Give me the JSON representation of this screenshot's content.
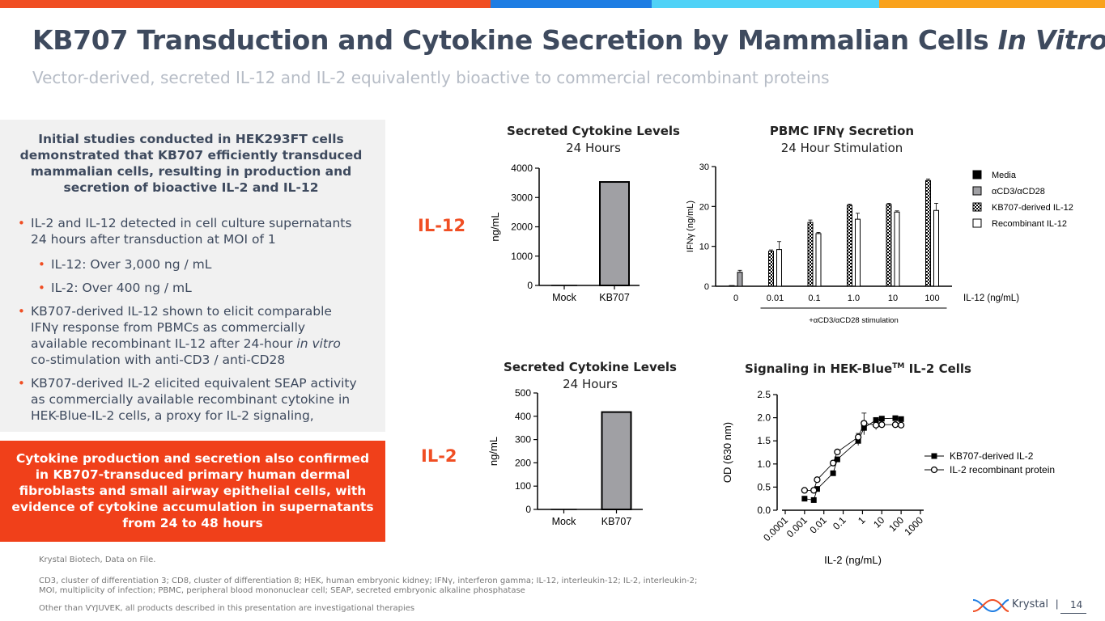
{
  "header": {
    "title": "KB707 Transduction and Cytokine Secretion by Mammalian Cells",
    "title_italic": "In Vitro",
    "subtitle": "Vector-derived, secreted IL-12 and IL-2 equivalently bioactive to commercial recombinant proteins"
  },
  "colors": {
    "bar1": "#f04e23",
    "bar2": "#1e7de3",
    "bar3": "#4fd2f7",
    "bar4": "#f9a21c",
    "accent": "#f04e23",
    "navy": "#3e4a5e",
    "box": "#f1f1f1",
    "gray_bar": "#a0a0a4"
  },
  "left": {
    "lead": "Initial studies conducted in HEK293FT cells demonstrated that KB707 efficiently transduced mammalian cells, resulting in production and secretion of bioactive IL-2 and IL-12",
    "bullet1": "IL-2 and IL-12 detected in cell culture supernatants 24 hours after transduction at MOI of 1",
    "sub1": "IL-12: Over 3,000 ng / mL",
    "sub2": "IL-2: Over 400 ng / mL",
    "bullet2_a": "KB707-derived IL-12 shown to elicit comparable IFNγ response from PBMCs as commercially available recombinant IL-12 after 24-hour",
    "bullet2_i": "in vitro",
    "bullet2_b": "co-stimulation with anti-CD3 / anti-CD28",
    "bullet3": "KB707-derived IL-2 elicited equivalent SEAP activity as commercially available recombinant cytokine in HEK-Blue-IL-2 cells, a proxy for IL-2 signaling,",
    "callout": "Cytokine production and secretion also confirmed in KB707-transduced primary human dermal fibroblasts and small airway epithelial cells, with evidence of cytokine accumulation in supernatants from 24 to 48 hours"
  },
  "row_labels": {
    "il12": "IL-12",
    "il2": "IL-2"
  },
  "footer": {
    "source": "Krystal Biotech, Data on File.",
    "abbr1": "CD3, cluster of differentiation 3; CD8, cluster of differentiation 8; HEK, human embryonic kidney; IFNγ, interferon gamma; IL-12, interleukin-12; IL-2, interleukin-2;",
    "abbr2": "MOI, multiplicity of infection; PBMC, peripheral blood mononuclear cell; SEAP, secreted embryonic alkaline phosphatase",
    "disclaimer": "Other than VYJUVEK, all products described in this presentation are investigational therapies",
    "logo": "Krystal",
    "page": "14"
  },
  "chart_data": [
    {
      "id": "il12_secretion",
      "type": "bar",
      "title": "Secreted Cytokine Levels",
      "subtitle": "24 Hours",
      "categories": [
        "Mock",
        "KB707"
      ],
      "values": [
        0,
        3530
      ],
      "ylabel": "ng/mL",
      "ylim": [
        0,
        4000
      ],
      "yticks": [
        0,
        1000,
        2000,
        3000,
        4000
      ],
      "ytick_labels": [
        "0",
        "1000",
        "2000",
        "3000",
        "4000"
      ]
    },
    {
      "id": "pbmc_ifng",
      "type": "bar",
      "title": "PBMC IFNγ Secretion",
      "subtitle": "24 Hour Stimulation",
      "categories": [
        "0",
        "0.01",
        "0.1",
        "1.0",
        "10",
        "100"
      ],
      "xlabel": "IL-12 (ng/mL)",
      "bracket_label": "+αCD3/αCD28 stimulation",
      "ylabel": "IFNγ (ng/mL)",
      "ylim": [
        0,
        30
      ],
      "yticks": [
        0,
        10,
        20,
        30
      ],
      "ytick_labels": [
        "0",
        "10",
        "20",
        "30"
      ],
      "series": [
        {
          "name": "Media",
          "values": [
            0,
            null,
            null,
            null,
            null,
            null
          ]
        },
        {
          "name": "αCD3/αCD28",
          "values": [
            3.5,
            null,
            null,
            null,
            null,
            null
          ]
        },
        {
          "name": "KB707-derived IL-12",
          "values": [
            null,
            8.8,
            16,
            20.3,
            20.5,
            26.5
          ]
        },
        {
          "name": "Recombinant IL-12",
          "values": [
            null,
            9.2,
            13.2,
            16.8,
            18.6,
            19.0
          ]
        }
      ],
      "errors": [
        {
          "name": "αCD3/αCD28",
          "values": [
            0.5,
            null,
            null,
            null,
            null,
            null
          ]
        },
        {
          "name": "KB707-derived IL-12",
          "values": [
            null,
            0.3,
            0.6,
            0.3,
            0.3,
            0.4
          ]
        },
        {
          "name": "Recombinant IL-12",
          "values": [
            null,
            2.0,
            0.3,
            1.5,
            0.3,
            1.8
          ]
        }
      ]
    },
    {
      "id": "il2_secretion",
      "type": "bar",
      "title": "Secreted Cytokine Levels",
      "subtitle": "24 Hours",
      "categories": [
        "Mock",
        "KB707"
      ],
      "values": [
        0,
        418
      ],
      "ylabel": "ng/mL",
      "ylim": [
        0,
        500
      ],
      "yticks": [
        0,
        100,
        200,
        300,
        400,
        500
      ],
      "ytick_labels": [
        "0",
        "100",
        "200",
        "300",
        "400",
        "500"
      ]
    },
    {
      "id": "hek_blue",
      "type": "line",
      "title": "Signaling in HEK-Blue",
      "title_sup": "TM",
      "title_suffix": " IL-2 Cells",
      "xlabel": "IL-2 (ng/mL)",
      "ylabel": "OD (630 nm)",
      "xscale": "log",
      "xlim": [
        0.0001,
        1000
      ],
      "xtick_labels": [
        "0.0001",
        "0.001",
        "0.01",
        "0.1",
        "1",
        "10",
        "100",
        "1000"
      ],
      "ylim": [
        0,
        2.5
      ],
      "yticks": [
        0,
        0.5,
        1,
        1.5,
        2,
        2.5
      ],
      "ytick_labels": [
        "0.0",
        "0.5",
        "1.0",
        "1.5",
        "2.0",
        "2.5"
      ],
      "series": [
        {
          "name": "KB707-derived IL-2",
          "marker": "square",
          "x": [
            0.001,
            0.003,
            0.0045,
            0.03,
            0.05,
            0.6,
            1.2,
            5,
            10,
            50,
            100
          ],
          "y": [
            0.25,
            0.22,
            0.46,
            0.8,
            1.1,
            1.5,
            1.78,
            1.95,
            1.98,
            1.99,
            1.97
          ],
          "err": [
            0,
            0,
            0,
            0,
            0,
            0.1,
            0.15,
            0,
            0,
            0,
            0
          ]
        },
        {
          "name": "IL-2 recombinant protein",
          "marker": "circle",
          "x": [
            0.001,
            0.003,
            0.0045,
            0.03,
            0.05,
            0.6,
            1.2,
            5,
            10,
            50,
            100
          ],
          "y": [
            0.43,
            0.43,
            0.66,
            1.02,
            1.26,
            1.58,
            1.88,
            1.84,
            1.85,
            1.85,
            1.84
          ],
          "err": [
            0,
            0,
            0,
            0,
            0,
            0.08,
            0.22,
            0.1,
            0,
            0,
            0
          ]
        }
      ]
    }
  ]
}
